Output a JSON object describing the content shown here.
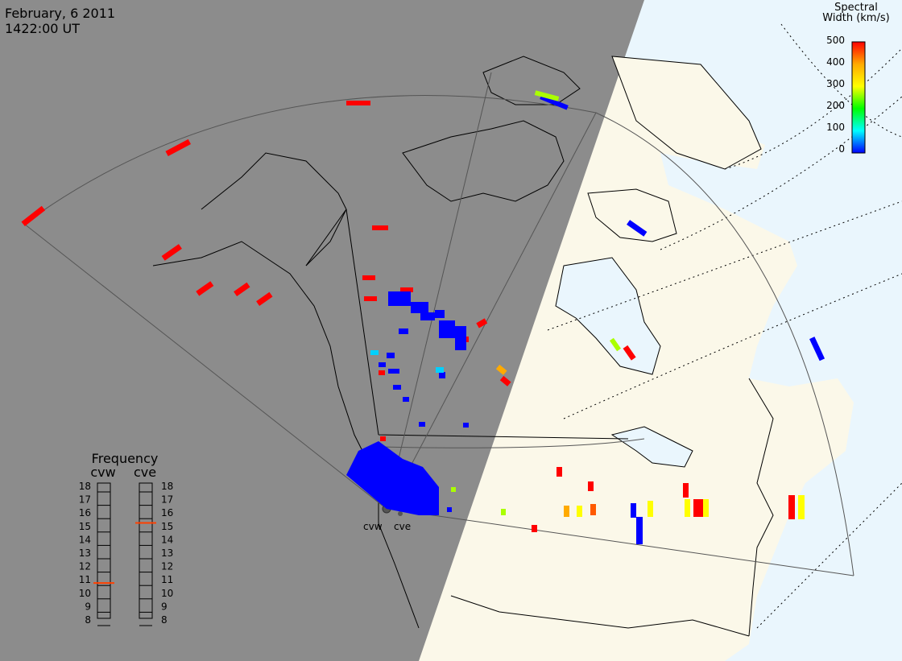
{
  "header": {
    "date": "February, 6 2011",
    "time": "1422:00 UT"
  },
  "colorbar": {
    "title_line1": "Spectral",
    "title_line2": "Width (km/s)",
    "ticks": [
      "500",
      "400",
      "300",
      "200",
      "100",
      "0"
    ],
    "range": [
      0,
      500
    ],
    "colors": [
      "#ff0000",
      "#ffaa00",
      "#ffff00",
      "#00ff00",
      "#00ffff",
      "#0000ff"
    ]
  },
  "frequency_panel": {
    "title": "Frequency",
    "radars": [
      "cvw",
      "cve"
    ],
    "scale": [
      "18",
      "17",
      "16",
      "15",
      "14",
      "13",
      "12",
      "11",
      "10",
      "9",
      "8"
    ],
    "cvw_freq": 10.7,
    "cve_freq": 15.2,
    "marker_color": "#ff4000"
  },
  "radar_sites": {
    "cvw_label": "cvw",
    "cve_label": "cve"
  },
  "colors": {
    "night_shade": "#8c8c8c",
    "day_land": "#fbf8e9",
    "ocean": "#eaf6fd",
    "coast": "#000000",
    "fov_outline": "#555555"
  },
  "legend_scale_units": "km/s"
}
